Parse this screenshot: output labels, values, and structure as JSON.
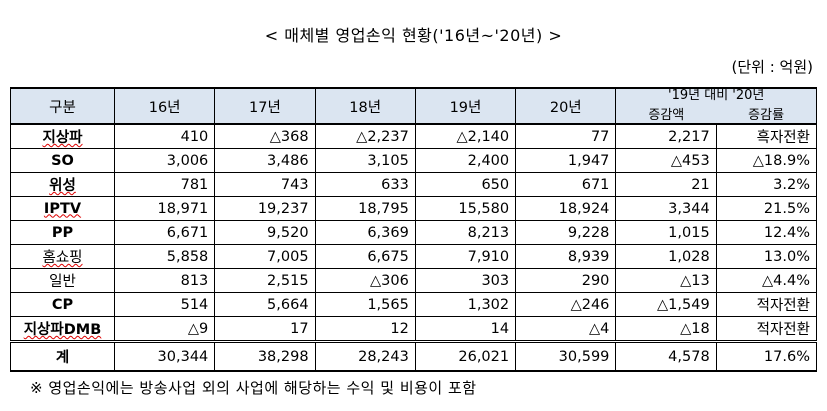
{
  "title": "< 매체별 영업손익 현황('16년~'20년) >",
  "unit": "(단위 : 억원)",
  "headers": {
    "category": "구분",
    "years": [
      "16년",
      "17년",
      "18년",
      "19년",
      "20년"
    ],
    "ratio_group": "'19년 대비 '20년",
    "ratio_change": "증감액",
    "ratio_rate": "증감률"
  },
  "rows": [
    {
      "label": "지상파",
      "values": [
        "410",
        "△368",
        "△2,237",
        "△2,140",
        "77",
        "2,217",
        "흑자전환"
      ]
    },
    {
      "label": "SO",
      "values": [
        "3,006",
        "3,486",
        "3,105",
        "2,400",
        "1,947",
        "△453",
        "△18.9%"
      ]
    },
    {
      "label": "위성",
      "values": [
        "781",
        "743",
        "633",
        "650",
        "671",
        "21",
        "3.2%"
      ]
    },
    {
      "label": "IPTV",
      "values": [
        "18,971",
        "19,237",
        "18,795",
        "15,580",
        "18,924",
        "3,344",
        "21.5%"
      ]
    },
    {
      "label": "PP",
      "values": [
        "6,671",
        "9,520",
        "6,369",
        "8,213",
        "9,228",
        "1,015",
        "12.4%"
      ]
    },
    {
      "label": "홈쇼핑",
      "values": [
        "5,858",
        "7,005",
        "6,675",
        "7,910",
        "8,939",
        "1,028",
        "13.0%"
      ]
    },
    {
      "label": "일반",
      "values": [
        "813",
        "2,515",
        "△306",
        "303",
        "290",
        "△13",
        "△4.4%"
      ]
    },
    {
      "label": "CP",
      "values": [
        "514",
        "5,664",
        "1,565",
        "1,302",
        "△246",
        "△1,549",
        "적자전환"
      ]
    },
    {
      "label": "지상파DMB",
      "values": [
        "△9",
        "17",
        "12",
        "14",
        "△4",
        "△18",
        "적자전환"
      ]
    }
  ],
  "total": {
    "label": "계",
    "values": [
      "30,344",
      "38,298",
      "28,243",
      "26,021",
      "30,599",
      "4,578",
      "17.6%"
    ]
  },
  "note": "※ 영업손익에는 방송사업 외의 사업에 해당하는 수익 및 비용이 포함"
}
